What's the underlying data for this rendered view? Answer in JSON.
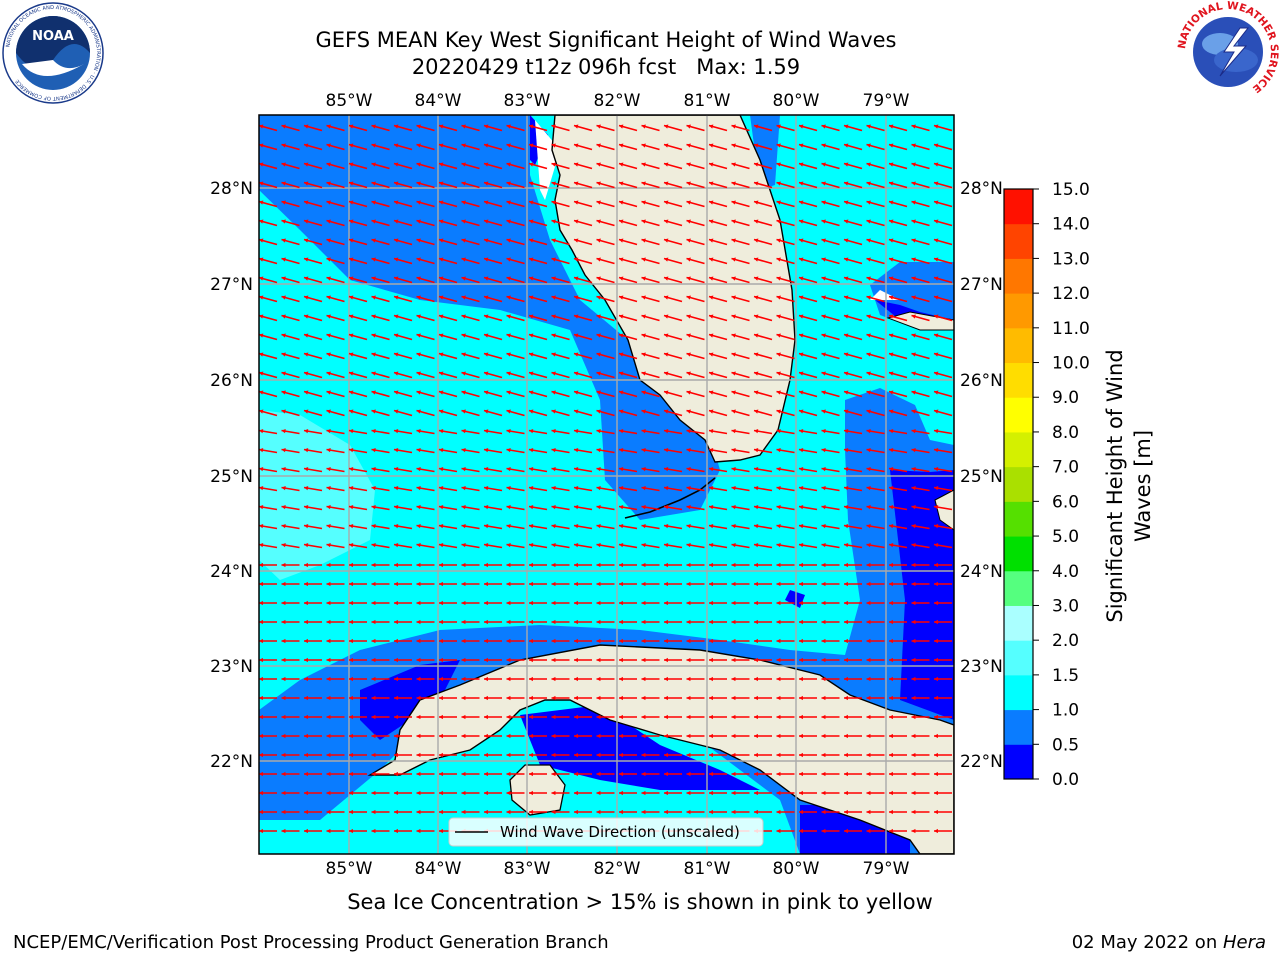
{
  "header": {
    "title_line1": "GEFS MEAN Key West Significant Height of Wind Waves",
    "title_line2": "20220429 t12z 096h fcst   Max: 1.59"
  },
  "logos": {
    "left_text": "NOAA",
    "left_ring_text": "NATIONAL OCEANIC AND ATMOSPHERIC ADMINISTRATION · U.S. DEPARTMENT OF COMMERCE",
    "right_ring_text": "NATIONAL WEATHER SERVICE"
  },
  "map": {
    "lon_labels": [
      "85°W",
      "84°W",
      "83°W",
      "82°W",
      "81°W",
      "80°W",
      "79°W"
    ],
    "lat_labels": [
      "28°N",
      "27°N",
      "26°N",
      "25°N",
      "24°N",
      "23°N",
      "22°N"
    ],
    "legend_label": "Wind Wave Direction (unscaled)",
    "arrow_color": "#ff0000",
    "land_color": "#efeddc"
  },
  "colorbar": {
    "label_line1": "Significant Height of Wind",
    "label_line2": "Waves [m]",
    "ticks": [
      "0.0",
      "0.5",
      "1.0",
      "1.5",
      "2.0",
      "3.0",
      "4.0",
      "5.0",
      "6.0",
      "7.0",
      "8.0",
      "9.0",
      "10.0",
      "11.0",
      "12.0",
      "13.0",
      "14.0",
      "15.0"
    ],
    "colors": [
      "#0000ff",
      "#0a7cff",
      "#00ffff",
      "#55ffff",
      "#aaffff",
      "#55ff7f",
      "#00e000",
      "#55e000",
      "#aae000",
      "#d4f000",
      "#ffff00",
      "#ffdd00",
      "#ffbb00",
      "#ff9900",
      "#ff7700",
      "#ff4400",
      "#ff1100"
    ]
  },
  "sea_ice_note": "Sea Ice Concentration > 15% is shown in pink to yellow",
  "footer": {
    "left": "NCEP/EMC/Verification Post Processing Product Generation Branch",
    "date": "02 May 2022 on ",
    "machine": "Hera"
  }
}
